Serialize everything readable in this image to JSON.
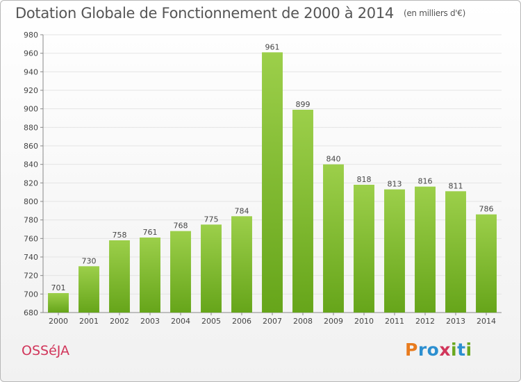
{
  "title": "Dotation Globale de Fonctionnement de 2000 à 2014",
  "subtitle": "(en milliers d'€)",
  "commune": "OSSéJA",
  "logo": {
    "text": "Proxiti",
    "colors": [
      "#e87b1e",
      "#2c8fd0",
      "#2c8fd0",
      "#d1355a",
      "#6aa81f",
      "#2c8fd0",
      "#6aa81f"
    ]
  },
  "colors": {
    "bar_top": "#9ccf4a",
    "bar_bottom": "#66a51a",
    "grid": "#e4e4e4",
    "axis": "#888888",
    "text": "#444444"
  },
  "chart_data": {
    "type": "bar",
    "title": "Dotation Globale de Fonctionnement de 2000 à 2014",
    "subtitle": "(en milliers d'€)",
    "categories": [
      "2000",
      "2001",
      "2002",
      "2003",
      "2004",
      "2005",
      "2006",
      "2007",
      "2008",
      "2009",
      "2010",
      "2011",
      "2012",
      "2013",
      "2014"
    ],
    "values": [
      701,
      730,
      758,
      761,
      768,
      775,
      784,
      961,
      899,
      840,
      818,
      813,
      816,
      811,
      786
    ],
    "ylim": [
      680,
      980
    ],
    "yticks": [
      680,
      700,
      720,
      740,
      760,
      780,
      800,
      820,
      840,
      860,
      880,
      900,
      920,
      940,
      960,
      980
    ],
    "grid": true,
    "data_labels": true
  }
}
